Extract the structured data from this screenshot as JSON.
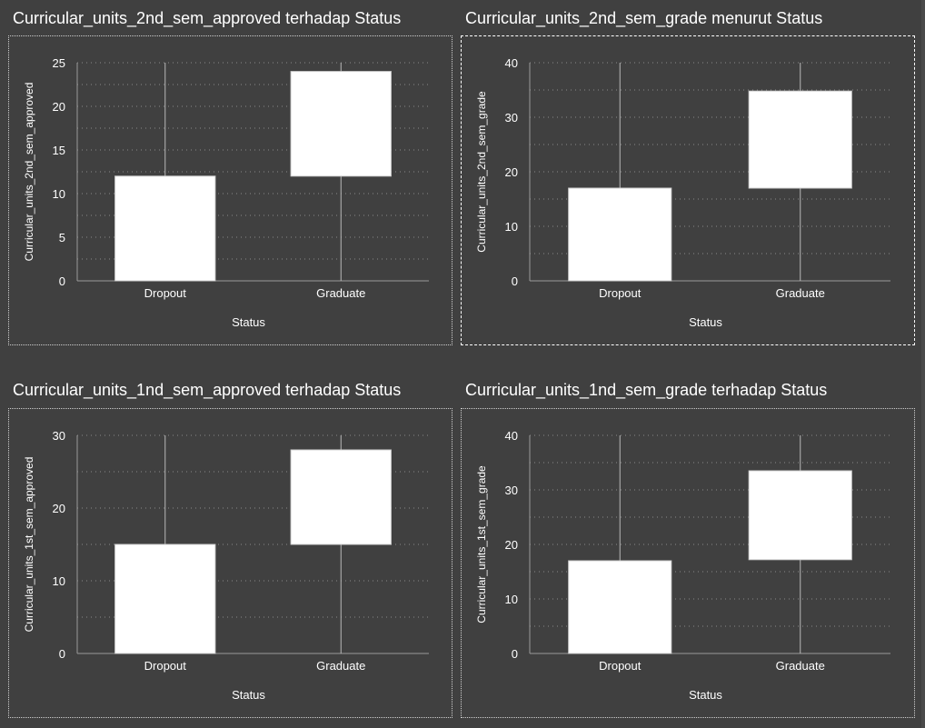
{
  "panels": [
    {
      "title": "Curricular_units_2nd_sem_approved terhadap Status",
      "chart_data": {
        "type": "box",
        "categories": [
          "Dropout",
          "Graduate"
        ],
        "boxes": [
          {
            "category": "Dropout",
            "min": 0,
            "q1": 0,
            "q3": 12,
            "max": 25
          },
          {
            "category": "Graduate",
            "min": 0,
            "q1": 12,
            "q3": 24,
            "max": 25
          }
        ],
        "xlabel": "Status",
        "ylabel": "Curricular_units_2nd_sem_approved",
        "yticks": [
          "0",
          "5",
          "10",
          "15",
          "20",
          "25"
        ],
        "ylim": [
          0,
          25
        ],
        "grid": true
      }
    },
    {
      "title": "Curricular_units_2nd_sem_grade menurut Status",
      "chart_data": {
        "type": "box",
        "categories": [
          "Dropout",
          "Graduate"
        ],
        "boxes": [
          {
            "category": "Dropout",
            "min": 0,
            "q1": 0,
            "q3": 17,
            "max": 40
          },
          {
            "category": "Graduate",
            "min": 0,
            "q1": 17,
            "q3": 34.8,
            "max": 40
          }
        ],
        "xlabel": "Status",
        "ylabel": "Curricular_units_2nd_sem_grade",
        "yticks": [
          "0",
          "10",
          "20",
          "30",
          "40"
        ],
        "ylim": [
          0,
          40
        ],
        "grid": true
      }
    },
    {
      "title": "Curricular_units_1nd_sem_approved terhadap Status",
      "chart_data": {
        "type": "box",
        "categories": [
          "Dropout",
          "Graduate"
        ],
        "boxes": [
          {
            "category": "Dropout",
            "min": 0,
            "q1": 0,
            "q3": 15,
            "max": 30
          },
          {
            "category": "Graduate",
            "min": 0,
            "q1": 15,
            "q3": 28,
            "max": 30
          }
        ],
        "xlabel": "Status",
        "ylabel": "Curricular_units_1st_sem_approved",
        "yticks": [
          "0",
          "10",
          "20",
          "30"
        ],
        "ylim": [
          0,
          30
        ],
        "grid": true
      }
    },
    {
      "title": "Curricular_units_1nd_sem_grade terhadap Status",
      "chart_data": {
        "type": "box",
        "categories": [
          "Dropout",
          "Graduate"
        ],
        "boxes": [
          {
            "category": "Dropout",
            "min": 0,
            "q1": 0,
            "q3": 17,
            "max": 40
          },
          {
            "category": "Graduate",
            "min": 0,
            "q1": 17.2,
            "q3": 33.5,
            "max": 40
          }
        ],
        "xlabel": "Status",
        "ylabel": "Curricular_units_1st_sem_grade",
        "yticks": [
          "0",
          "10",
          "20",
          "30",
          "40"
        ],
        "ylim": [
          0,
          40
        ],
        "grid": true
      }
    }
  ],
  "colors": {
    "background": "#404040",
    "box_fill": "#ffffff",
    "text": "#ffffff",
    "axis": "#9a9a9a",
    "grid": "#8a8a8a",
    "whisker": "#b8b8b8",
    "frame": "#cfcfcf"
  }
}
